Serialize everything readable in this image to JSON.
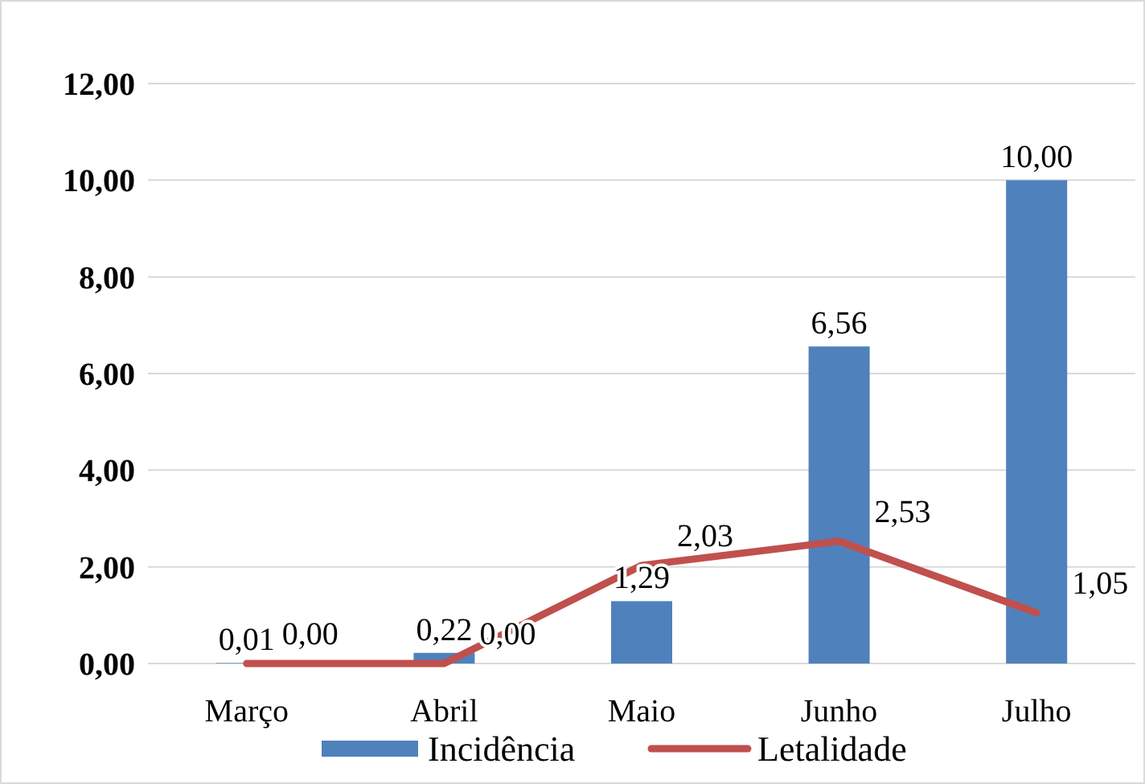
{
  "chart_data": {
    "type": "bar",
    "categories": [
      "Março",
      "Abril",
      "Maio",
      "Junho",
      "Julho"
    ],
    "series": [
      {
        "name": "Incidência",
        "color": "#4f81bd",
        "values": [
          0.01,
          0.22,
          1.29,
          6.56,
          10.0
        ],
        "value_labels": [
          "0,01",
          "0,22",
          "1,29",
          "6,56",
          "10,00"
        ]
      },
      {
        "name": "Letalidade",
        "type": "line",
        "color": "#c0504d",
        "values": [
          0.0,
          0.0,
          2.03,
          2.53,
          1.05
        ],
        "value_labels": [
          "0,00",
          "0,00",
          "2,03",
          "2,53",
          "1,05"
        ]
      }
    ],
    "ylim": [
      0,
      12
    ],
    "yticks": [
      {
        "value": 0,
        "label": "0,00"
      },
      {
        "value": 2,
        "label": "2,00"
      },
      {
        "value": 4,
        "label": "4,00"
      },
      {
        "value": 6,
        "label": "6,00"
      },
      {
        "value": 8,
        "label": "8,00"
      },
      {
        "value": 10,
        "label": "10,00"
      },
      {
        "value": 12,
        "label": "12,00"
      }
    ],
    "grid": "y",
    "legend": "bottom",
    "marker": "none"
  }
}
